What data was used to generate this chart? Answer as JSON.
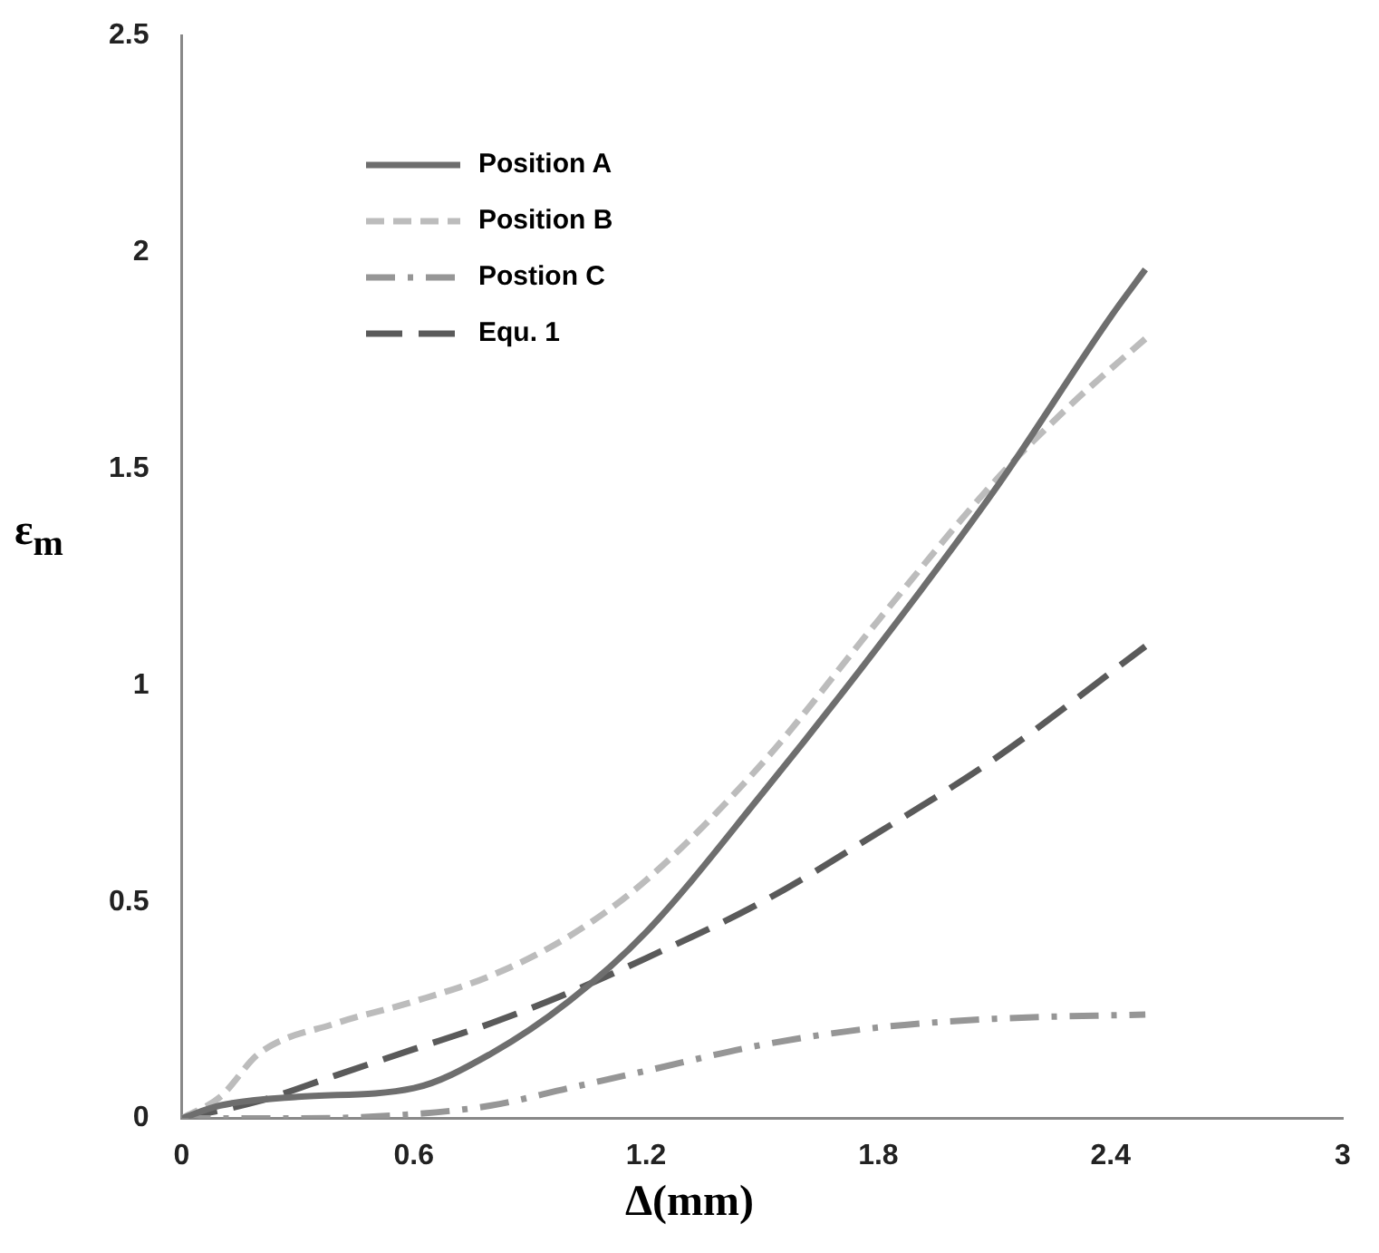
{
  "chart_data": {
    "type": "line",
    "xlabel": "Δ(mm)",
    "ylabel": "ε$_{m}$",
    "xlim": [
      0,
      3
    ],
    "xticks": [
      0,
      0.6,
      1.2,
      1.8,
      2.4,
      3
    ],
    "ylim": [
      0,
      2.5
    ],
    "yticks": [
      0,
      0.5,
      1,
      1.5,
      2,
      2.5
    ],
    "grid": false,
    "legend": "top left",
    "marker": "none",
    "series": [
      {
        "name": "Position A",
        "color": "#6e6e6e",
        "line_style": "solid",
        "x": [
          0,
          0.1,
          0.3,
          0.6,
          0.8,
          1.0,
          1.2,
          1.5,
          1.8,
          2.1,
          2.4,
          2.49
        ],
        "values": [
          0,
          0.03,
          0.05,
          0.07,
          0.15,
          0.27,
          0.43,
          0.75,
          1.09,
          1.45,
          1.85,
          1.96
        ]
      },
      {
        "name": "Position B",
        "color": "#bcbcbc",
        "line_style": "dashed",
        "x": [
          0,
          0.1,
          0.2,
          0.4,
          0.6,
          0.8,
          1.0,
          1.2,
          1.5,
          1.8,
          2.1,
          2.3,
          2.49
        ],
        "values": [
          0,
          0.05,
          0.15,
          0.22,
          0.27,
          0.33,
          0.42,
          0.55,
          0.82,
          1.15,
          1.47,
          1.65,
          1.8
        ]
      },
      {
        "name": "Postion C",
        "color": "#969696",
        "line_style": "dashdot",
        "x": [
          0,
          0.3,
          0.6,
          0.8,
          1.0,
          1.2,
          1.5,
          1.8,
          2.1,
          2.49
        ],
        "values": [
          0,
          0,
          0.01,
          0.03,
          0.07,
          0.11,
          0.17,
          0.21,
          0.23,
          0.24
        ]
      },
      {
        "name": "Equ. 1",
        "color": "#5a5a5a",
        "line_style": "longdash",
        "x": [
          0,
          0.2,
          0.4,
          0.6,
          0.8,
          1.0,
          1.2,
          1.5,
          1.8,
          2.1,
          2.49
        ],
        "values": [
          0,
          0.04,
          0.1,
          0.16,
          0.22,
          0.29,
          0.37,
          0.5,
          0.66,
          0.83,
          1.09
        ]
      }
    ]
  }
}
